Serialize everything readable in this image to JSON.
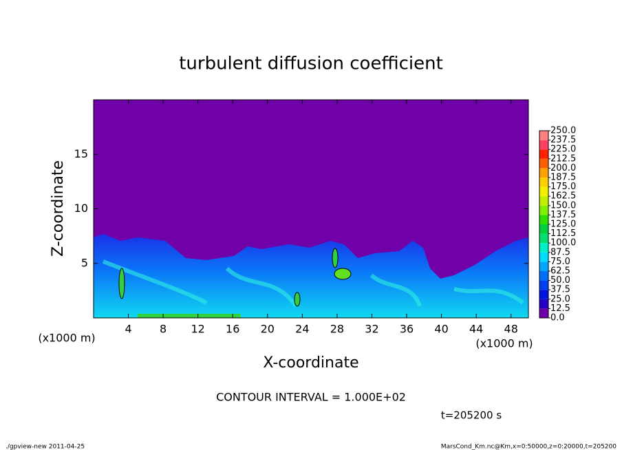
{
  "chart_data": {
    "type": "heatmap",
    "title": "turbulent diffusion coefficient",
    "xlabel": "X-coordinate",
    "ylabel": "Z-coordinate",
    "xunit": "(x1000 m)",
    "yunit": "(x1000 m)",
    "xlim": [
      0,
      50
    ],
    "xticks": [
      4,
      8,
      12,
      16,
      20,
      24,
      28,
      32,
      36,
      40,
      44,
      48
    ],
    "ylim": [
      0,
      20
    ],
    "yticks": [
      5,
      10,
      15
    ],
    "colorbar": {
      "ticks": [
        {
          "value": 0,
          "label": "0.0"
        },
        12.5,
        25,
        37.5,
        50,
        62.5,
        75,
        87.5,
        100,
        112.5,
        125,
        137.5,
        150,
        162.5,
        175,
        187.5,
        200,
        212.5,
        225,
        237.5,
        250
      ],
      "labels": [
        "0.0",
        "12.5",
        "25.0",
        "37.5",
        "50.0",
        "62.5",
        "75.0",
        "87.5",
        "100.0",
        "112.5",
        "125.0",
        "137.5",
        "150.0",
        "162.5",
        "175.0",
        "187.5",
        "200.0",
        "212.5",
        "225.0",
        "237.5",
        "250.0"
      ],
      "colors": [
        "#7000a8",
        "#2400c4",
        "#0014e0",
        "#0040f0",
        "#0070f8",
        "#00a8ff",
        "#00dcff",
        "#00f0c8",
        "#00e070",
        "#00d040",
        "#30e000",
        "#80f000",
        "#c0f000",
        "#f0f000",
        "#ffd000",
        "#ffa000",
        "#ff6000",
        "#ff2000",
        "#ff4060",
        "#ff8080"
      ]
    },
    "annotations": [
      "CONTOUR INTERVAL = 1.000E+02",
      "t=205200 s"
    ],
    "footer_left": "./gpview-new  2011-04-25",
    "footer_right": "MarsCond_Km.nc@Km,x=0:50000,z=0:20000,t=205200"
  }
}
